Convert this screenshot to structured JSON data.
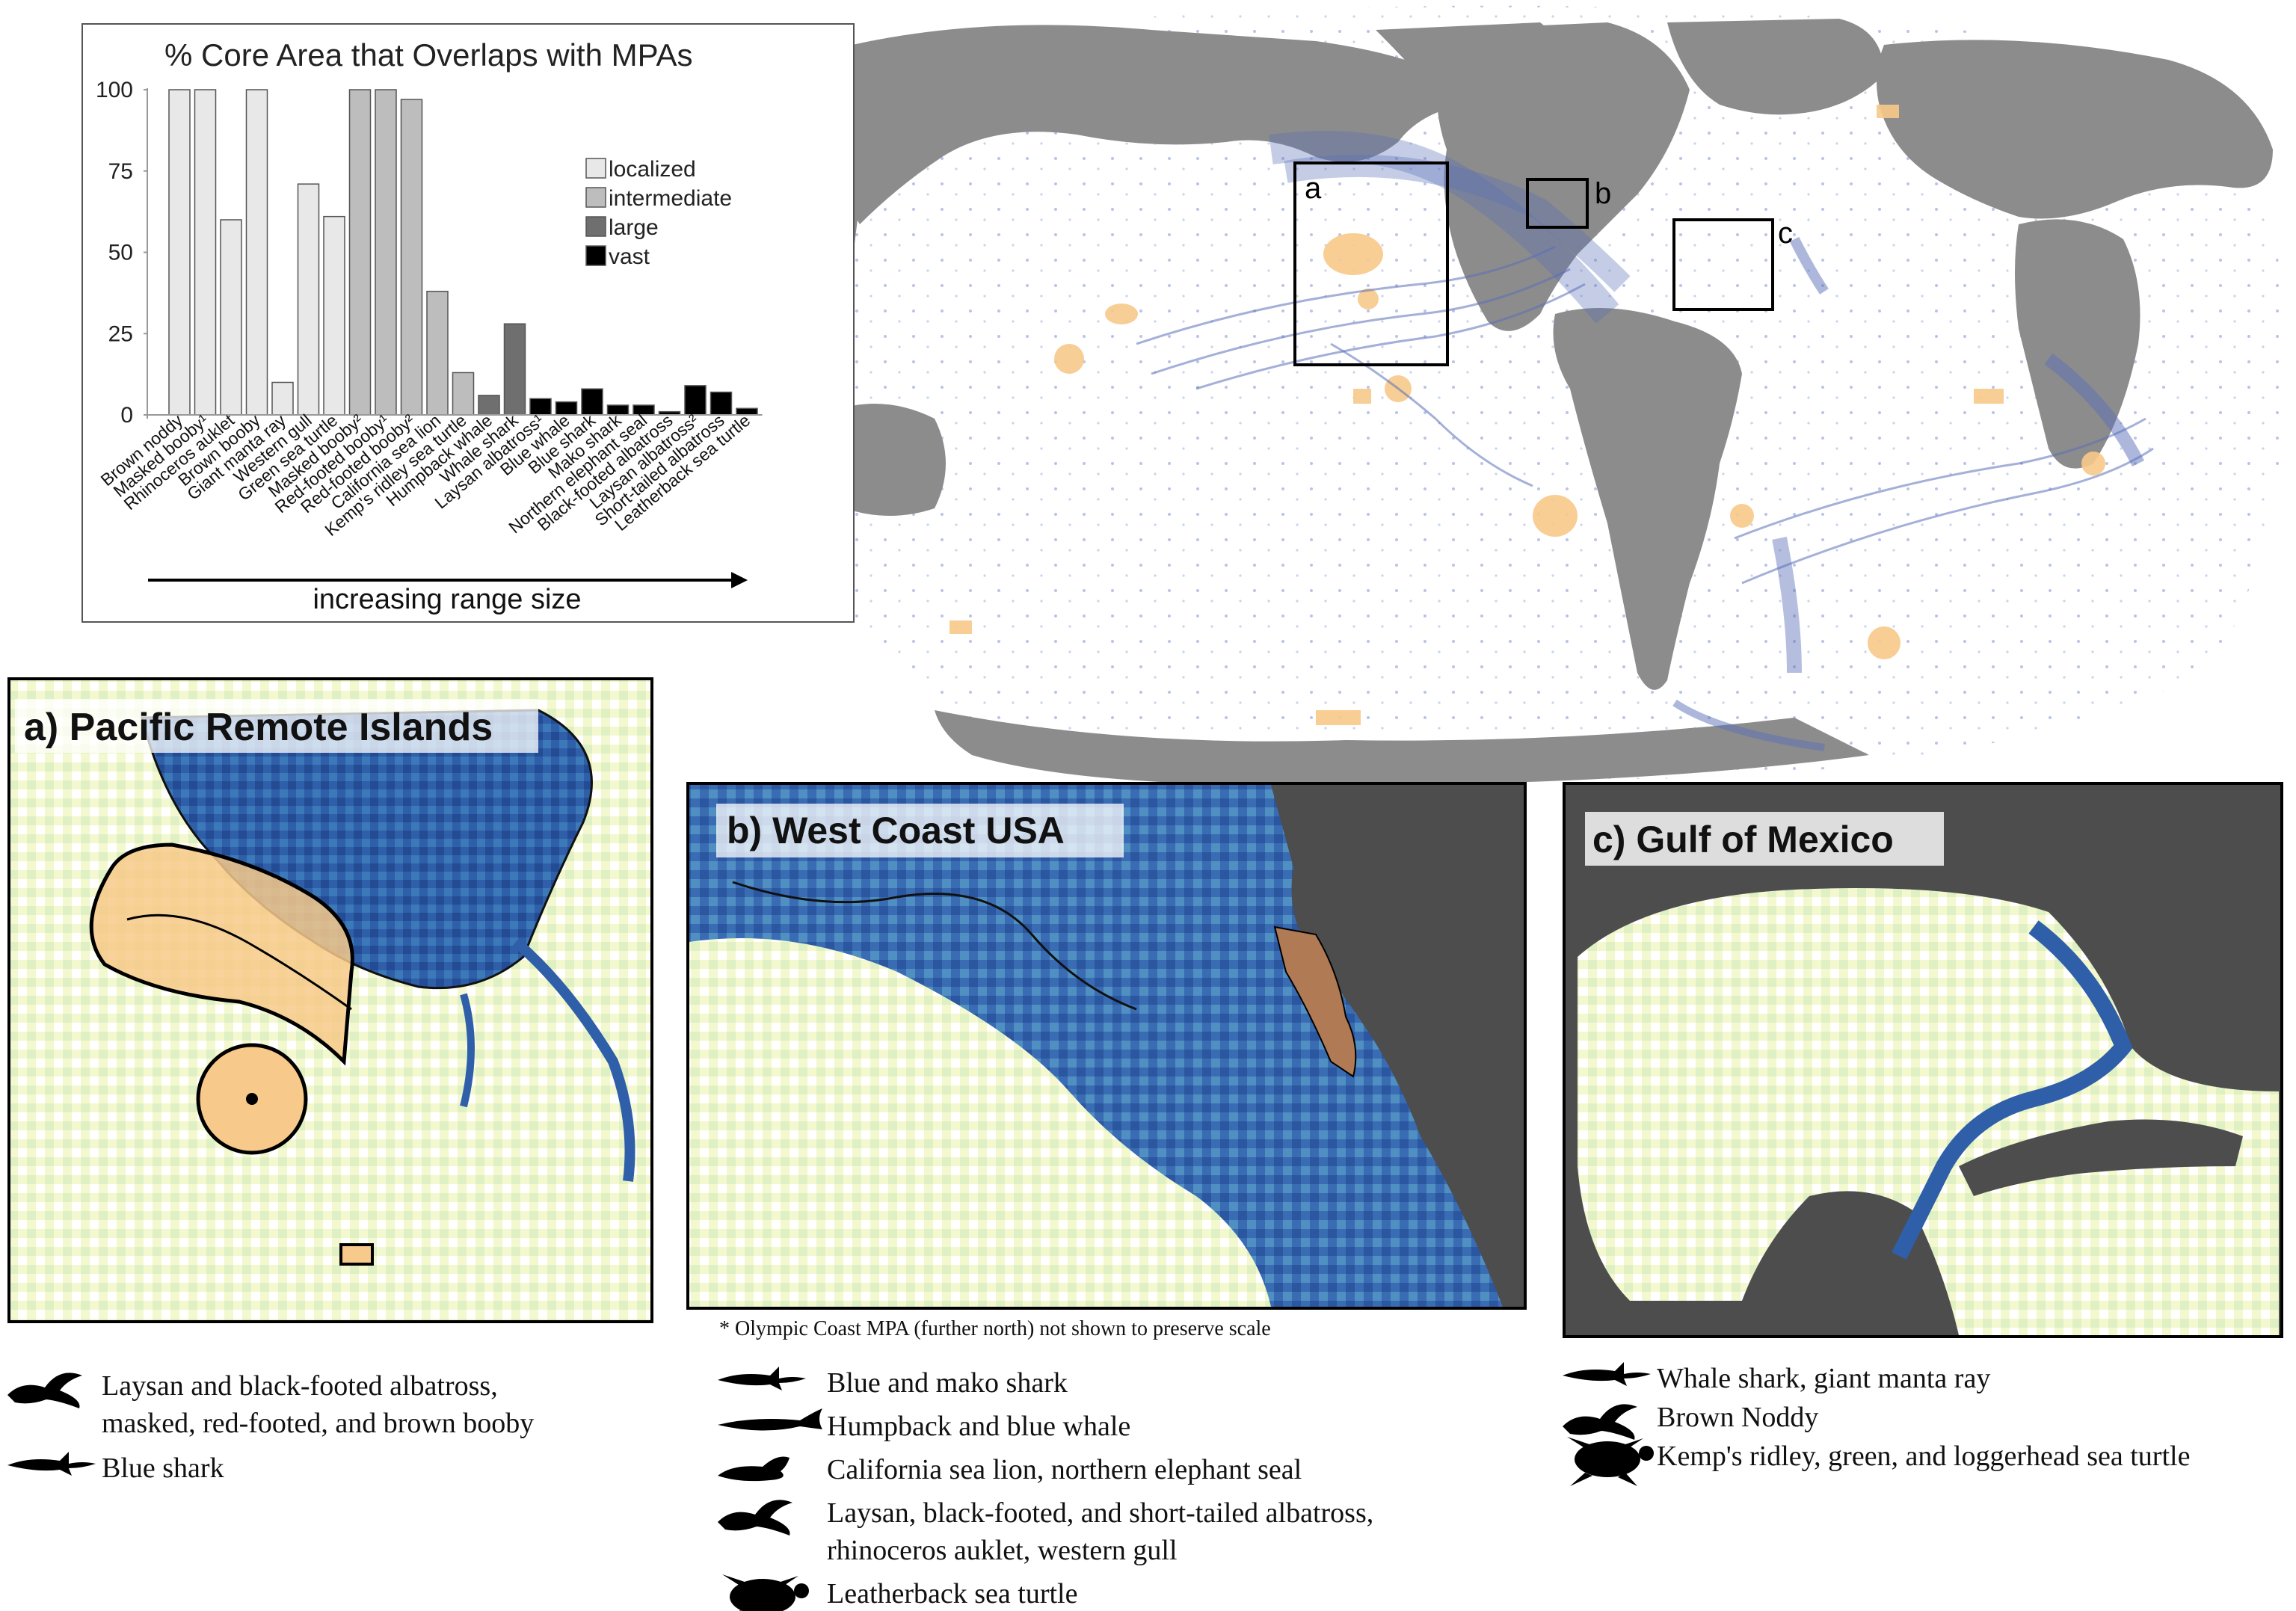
{
  "chart_data": {
    "type": "bar",
    "title": "% Core Area that Overlaps with MPAs",
    "xlabel": "increasing range size",
    "ylabel": "",
    "ylim": [
      0,
      100
    ],
    "yticks": [
      "0",
      "25",
      "50",
      "75",
      "100"
    ],
    "legend_placement": "top-right",
    "categories": [
      "Brown noddy",
      "Masked booby¹",
      "Rhinoceros auklet",
      "Brown booby",
      "Giant manta ray",
      "Western gull",
      "Green sea turtle",
      "Masked booby²",
      "Red-footed booby¹",
      "Red-footed booby²",
      "California sea lion",
      "Kemp's ridley sea turtle",
      "Humpback whale",
      "Whale shark",
      "Laysan albatross¹",
      "Blue whale",
      "Blue shark",
      "Mako shark",
      "Northern elephant seal",
      "Black-footed albatross",
      "Laysan albatross²",
      "Short-tailed albatross",
      "Leatherback sea turtle"
    ],
    "values": [
      100,
      100,
      60,
      100,
      10,
      71,
      61,
      100,
      100,
      97,
      38,
      13,
      6,
      28,
      5,
      4,
      8,
      3,
      3,
      1,
      9,
      7,
      2
    ],
    "groups": [
      "localized",
      "localized",
      "localized",
      "localized",
      "localized",
      "localized",
      "localized",
      "intermediate",
      "intermediate",
      "intermediate",
      "intermediate",
      "intermediate",
      "large",
      "large",
      "vast",
      "vast",
      "vast",
      "vast",
      "vast",
      "vast",
      "vast",
      "vast",
      "vast"
    ],
    "legend": [
      {
        "name": "localized",
        "color": "#e8e8e8"
      },
      {
        "name": "intermediate",
        "color": "#bdbdbd"
      },
      {
        "name": "large",
        "color": "#6f6f6f"
      },
      {
        "name": "vast",
        "color": "#000000"
      }
    ]
  },
  "map": {
    "box_labels": [
      "a",
      "b",
      "c"
    ],
    "colors": {
      "land": "#8c8c8c",
      "track": "#5a6fb8",
      "mpa": "#f7c98a",
      "ocean": "#ffffff"
    }
  },
  "panels": {
    "a": {
      "title": "a) Pacific Remote Islands"
    },
    "b": {
      "title": "b) West Coast USA",
      "footnote": "* Olympic Coast MPA (further north) not shown to preserve scale"
    },
    "c": {
      "title": "c) Gulf of Mexico"
    }
  },
  "species": {
    "a": [
      {
        "icon": "albatross-icon",
        "lines": [
          "Laysan and black-footed albatross,",
          "masked, red-footed, and brown booby"
        ]
      },
      {
        "icon": "shark-icon",
        "lines": [
          "Blue shark"
        ]
      }
    ],
    "b": [
      {
        "icon": "shark-icon",
        "lines": [
          "Blue and mako shark"
        ]
      },
      {
        "icon": "whale-icon",
        "lines": [
          "Humpback and blue whale"
        ]
      },
      {
        "icon": "sea-lion-icon",
        "lines": [
          "California sea lion, northern elephant seal"
        ]
      },
      {
        "icon": "albatross-icon",
        "lines": [
          "Laysan, black-footed, and short-tailed albatross,",
          "rhinoceros auklet, western gull"
        ]
      },
      {
        "icon": "turtle-icon",
        "lines": [
          "Leatherback sea turtle"
        ]
      }
    ],
    "c": [
      {
        "icon": "shark-icon",
        "lines": [
          "Whale shark, giant manta ray"
        ]
      },
      {
        "icon": "albatross-icon",
        "lines": [
          "Brown Noddy"
        ]
      },
      {
        "icon": "turtle-icon",
        "lines": [
          "Kemp's ridley, green, and loggerhead sea turtle"
        ]
      }
    ]
  }
}
